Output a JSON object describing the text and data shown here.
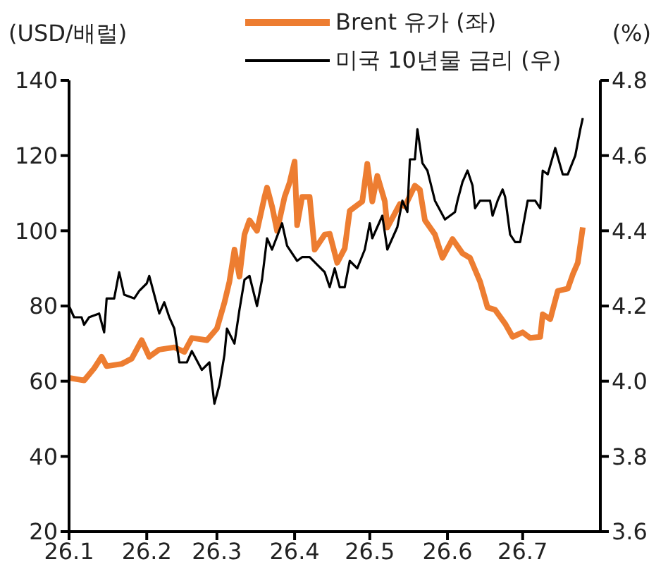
{
  "chart_data": {
    "type": "line",
    "ylabel": "(USD/배럴)",
    "y2label": "(%)",
    "legend": "top",
    "marker": "none",
    "line_style": "solid",
    "xlim": [
      "--01-01",
      "--08-01"
    ],
    "xticks": [
      {
        "value": "--01-01",
        "label": "26.1"
      },
      {
        "value": "--02-01",
        "label": "26.2"
      },
      {
        "value": "--03-01",
        "label": "26.3"
      },
      {
        "value": "--04-01",
        "label": "26.4"
      },
      {
        "value": "--05-01",
        "label": "26.5"
      },
      {
        "value": "--06-01",
        "label": "26.6"
      },
      {
        "value": "--07-01",
        "label": "26.7"
      }
    ],
    "ylim": [
      20,
      140
    ],
    "yticks": [
      20,
      40,
      60,
      80,
      100,
      120,
      140
    ],
    "y2lim": [
      3.6,
      4.8
    ],
    "y2ticks": [
      3.6,
      3.8,
      {
        "value": 4,
        "label": "4.0"
      },
      4.2,
      4.4,
      4.6,
      4.8
    ],
    "series": [
      {
        "name": "Brent 유가 (좌)",
        "color": "#ed7d31",
        "x": [
          "--01-01",
          "--01-07",
          "--01-11",
          "--01-14",
          "--01-16",
          "--01-22",
          "--01-26",
          "--01-30",
          "--02-02",
          "--02-06",
          "--02-12",
          "--02-16",
          "--02-19",
          "--02-25",
          "--03-01",
          "--03-04",
          "--03-06",
          "--03-08",
          "--03-10",
          "--03-12",
          "--03-14",
          "--03-17",
          "--03-20",
          "--03-21",
          "--03-23",
          "--03-25",
          "--03-28",
          "--03-30",
          "--04-01",
          "--04-02",
          "--04-04",
          "--04-07",
          "--04-09",
          "--04-13",
          "--04-15",
          "--04-18",
          "--04-21",
          "--04-23",
          "--04-28",
          "--04-30",
          "--05-02",
          "--05-04",
          "--05-07",
          "--05-08",
          "--05-13",
          "--05-15",
          "--05-19",
          "--05-21",
          "--05-23",
          "--05-27",
          "--05-30",
          "--06-03",
          "--06-07",
          "--06-10",
          "--06-14",
          "--06-17",
          "--06-20",
          "--06-24",
          "--06-27",
          "--07-01",
          "--07-04",
          "--07-08",
          "--07-09",
          "--07-12",
          "--07-15",
          "--07-19",
          "--07-21",
          "--07-23",
          "--07-25"
        ],
        "values": [
          60.9,
          60.2,
          63.4,
          66.5,
          64,
          64.6,
          66,
          70.9,
          66.5,
          68.4,
          69,
          67.8,
          71.5,
          70.9,
          74,
          80.9,
          86.5,
          95,
          87.8,
          99,
          102.8,
          100,
          109,
          111.5,
          106.5,
          100,
          109,
          112.8,
          118.4,
          101.5,
          109,
          109,
          95,
          99,
          99.2,
          91.5,
          95.3,
          105.3,
          107.8,
          117.8,
          107.8,
          114.6,
          107.8,
          100.9,
          107.1,
          106.5,
          112,
          110.9,
          102.8,
          99,
          92.8,
          97.8,
          94,
          92.8,
          86.5,
          79.6,
          79,
          75.3,
          71.8,
          73,
          71.5,
          71.8,
          77.8,
          76.5,
          84,
          84.6,
          88.4,
          91.5,
          100.9
        ]
      },
      {
        "name": "미국 10년물 금리 (우)",
        "color": "#000000",
        "axis": "y2",
        "x": [
          "--01-01",
          "--01-03",
          "--01-06",
          "--01-07",
          "--01-09",
          "--01-13",
          "--01-15",
          "--01-16",
          "--01-19",
          "--01-21",
          "--01-23",
          "--01-27",
          "--01-29",
          "--02-01",
          "--02-02",
          "--02-04",
          "--02-06",
          "--02-08",
          "--02-10",
          "--02-12",
          "--02-14",
          "--02-17",
          "--02-19",
          "--02-23",
          "--02-26",
          "--02-28",
          "--03-02",
          "--03-04",
          "--03-05",
          "--03-08",
          "--03-10",
          "--03-12",
          "--03-14",
          "--03-17",
          "--03-19",
          "--03-21",
          "--03-23",
          "--03-27",
          "--03-29",
          "--04-02",
          "--04-04",
          "--04-07",
          "--04-10",
          "--04-13",
          "--04-15",
          "--04-17",
          "--04-19",
          "--04-21",
          "--04-23",
          "--04-26",
          "--04-29",
          "--05-01",
          "--05-02",
          "--05-06",
          "--05-08",
          "--05-12",
          "--05-14",
          "--05-16",
          "--05-17",
          "--05-19",
          "--05-20",
          "--05-22",
          "--05-24",
          "--05-27",
          "--05-31",
          "--06-04",
          "--06-05",
          "--06-07",
          "--06-09",
          "--06-11",
          "--06-12",
          "--06-14",
          "--06-18",
          "--06-19",
          "--06-21",
          "--06-23",
          "--06-24",
          "--06-26",
          "--06-28",
          "--06-30",
          "--07-03",
          "--07-06",
          "--07-08",
          "--07-09",
          "--07-11",
          "--07-14",
          "--07-17",
          "--07-19",
          "--07-22",
          "--07-24",
          "--07-25"
        ],
        "values": [
          4.2,
          4.17,
          4.17,
          4.15,
          4.17,
          4.18,
          4.13,
          4.22,
          4.22,
          4.29,
          4.23,
          4.22,
          4.24,
          4.26,
          4.28,
          4.23,
          4.18,
          4.21,
          4.17,
          4.14,
          4.05,
          4.05,
          4.08,
          4.03,
          4.05,
          3.94,
          3.99,
          4.07,
          4.14,
          4.1,
          4.19,
          4.27,
          4.28,
          4.2,
          4.27,
          4.38,
          4.35,
          4.42,
          4.36,
          4.32,
          4.33,
          4.33,
          4.31,
          4.29,
          4.25,
          4.3,
          4.25,
          4.25,
          4.32,
          4.3,
          4.35,
          4.42,
          4.38,
          4.44,
          4.35,
          4.41,
          4.48,
          4.45,
          4.59,
          4.59,
          4.67,
          4.58,
          4.56,
          4.48,
          4.43,
          4.45,
          4.48,
          4.53,
          4.56,
          4.52,
          4.46,
          4.48,
          4.48,
          4.44,
          4.48,
          4.51,
          4.49,
          4.39,
          4.37,
          4.37,
          4.48,
          4.48,
          4.46,
          4.56,
          4.55,
          4.62,
          4.55,
          4.55,
          4.6,
          4.67,
          4.7
        ]
      }
    ]
  }
}
